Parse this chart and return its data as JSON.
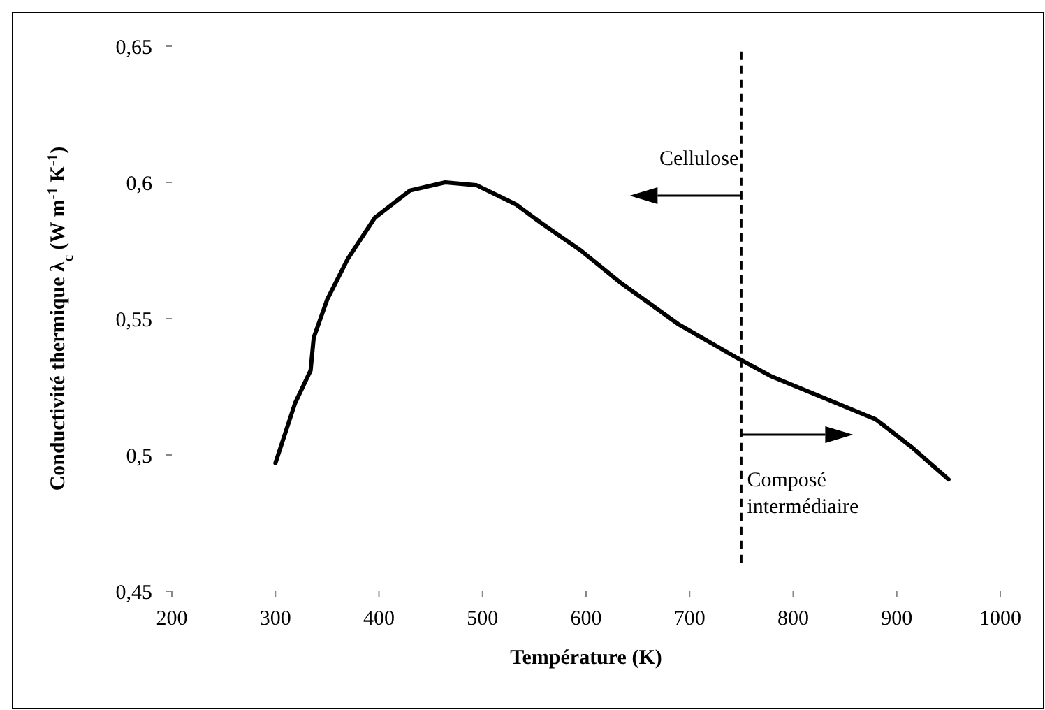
{
  "chart_data": {
    "type": "line",
    "xlabel": "Température (K)",
    "ylabel": "Conductivité thermique λ$_{c}$ (W m$^{-1}$ K$^{-1}$)",
    "x": [
      300,
      319,
      334,
      337,
      350,
      370,
      396,
      430,
      464,
      494,
      532,
      557,
      595,
      634,
      689,
      744,
      778,
      829,
      880,
      914,
      950
    ],
    "series": [
      {
        "color": "#000000",
        "values": [
          0.497,
          0.519,
          0.531,
          0.543,
          0.557,
          0.572,
          0.587,
          0.597,
          0.6,
          0.599,
          0.592,
          0.585,
          0.575,
          0.563,
          0.548,
          0.536,
          0.529,
          0.521,
          0.513,
          0.503,
          0.491
        ]
      }
    ],
    "xlim": [
      200,
      1000
    ],
    "xticks": [
      200,
      300,
      400,
      500,
      600,
      700,
      800,
      900,
      1000
    ],
    "ylim": [
      0.45,
      0.65
    ],
    "yticks": [
      {
        "value": 0.45,
        "label": "0,45"
      },
      {
        "value": 0.5,
        "label": "0,5"
      },
      {
        "value": 0.55,
        "label": "0,55"
      },
      {
        "value": 0.6,
        "label": "0,6"
      },
      {
        "value": 0.65,
        "label": "0,65"
      }
    ],
    "ref_lines": [
      {
        "axis": "x",
        "value": 750,
        "line_style": "dashed",
        "color": "#000000"
      }
    ],
    "annotations": [
      "Cellulose",
      "Composé intermédiaire"
    ],
    "grid": false,
    "marker": "none",
    "line_style": "solid"
  }
}
